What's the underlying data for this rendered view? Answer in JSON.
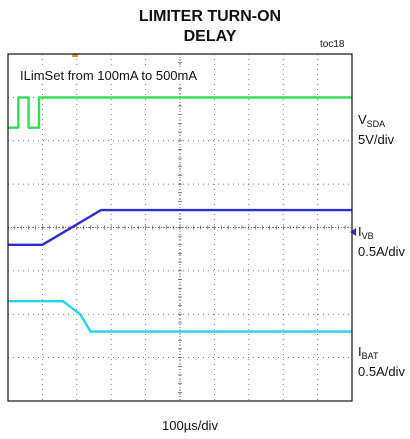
{
  "title_line1": "LIMITER TURN-ON",
  "title_line2": "DELAY",
  "figure_id": "toc18",
  "annotation": "ILimSet from 100mA to 500mA",
  "channels": [
    {
      "main": "V",
      "sub": "SDA",
      "scale": "5V/div",
      "color": "#33dd55"
    },
    {
      "main": "I",
      "sub": "VB",
      "scale": "0.5A/div",
      "color": "#2b2bd6"
    },
    {
      "main": "I",
      "sub": "BAT",
      "scale": "0.5A/div",
      "color": "#22d4ee"
    }
  ],
  "x_scale": "100µs/div",
  "chart_data": {
    "type": "line",
    "title": "LIMITER TURN-ON DELAY",
    "xlabel": "100µs/div",
    "x_unit": "div",
    "xlim": [
      0,
      10
    ],
    "ylim": [
      0,
      8
    ],
    "grid": true,
    "series": [
      {
        "name": "VSDA",
        "scale": "5V/div",
        "x": [
          0,
          0.3,
          0.3,
          0.6,
          0.6,
          0.9,
          0.9,
          1.2,
          1.2,
          10
        ],
        "y": [
          6.3,
          6.3,
          7.0,
          7.0,
          6.3,
          6.3,
          7.0,
          7.0,
          7.0,
          7.0
        ]
      },
      {
        "name": "IVB",
        "scale": "0.5A/div",
        "x": [
          0,
          1.0,
          2.7,
          10
        ],
        "y": [
          3.6,
          3.6,
          4.4,
          4.4
        ]
      },
      {
        "name": "IBAT",
        "scale": "0.5A/div",
        "x": [
          0,
          1.6,
          2.1,
          2.4,
          10
        ],
        "y": [
          2.3,
          2.3,
          2.0,
          1.6,
          1.6
        ]
      }
    ]
  }
}
